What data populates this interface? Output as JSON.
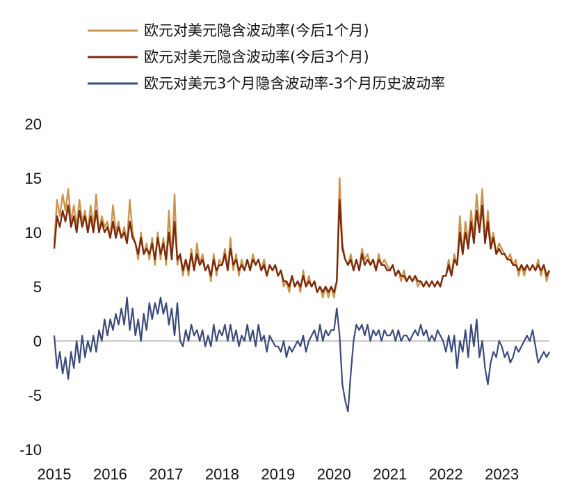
{
  "chart_data": {
    "type": "line",
    "title": "",
    "xlabel": "",
    "ylabel": "",
    "ylim": [
      -10,
      20
    ],
    "yticks": [
      -10,
      -5,
      0,
      5,
      10,
      15,
      20
    ],
    "xlim": [
      2015.0,
      2023.85
    ],
    "xtick_labels": [
      "2015",
      "2016",
      "2017",
      "2018",
      "2019",
      "2020",
      "2021",
      "2022",
      "2023"
    ],
    "legend_position": "top-left",
    "grid": false,
    "series": [
      {
        "name": "欧元对美元隐含波动率(今后1个月)",
        "color": "#c9954e",
        "x": [
          2015.0,
          2015.05,
          2015.1,
          2015.15,
          2015.2,
          2015.25,
          2015.3,
          2015.35,
          2015.4,
          2015.45,
          2015.5,
          2015.55,
          2015.6,
          2015.65,
          2015.7,
          2015.75,
          2015.8,
          2015.85,
          2015.9,
          2015.95,
          2016.0,
          2016.05,
          2016.1,
          2016.15,
          2016.2,
          2016.25,
          2016.3,
          2016.35,
          2016.4,
          2016.45,
          2016.5,
          2016.55,
          2016.6,
          2016.65,
          2016.7,
          2016.75,
          2016.8,
          2016.85,
          2016.9,
          2016.95,
          2017.0,
          2017.05,
          2017.1,
          2017.15,
          2017.2,
          2017.25,
          2017.3,
          2017.35,
          2017.4,
          2017.45,
          2017.5,
          2017.55,
          2017.6,
          2017.65,
          2017.7,
          2017.75,
          2017.8,
          2017.85,
          2017.9,
          2017.95,
          2018.0,
          2018.05,
          2018.1,
          2018.15,
          2018.2,
          2018.25,
          2018.3,
          2018.35,
          2018.4,
          2018.45,
          2018.5,
          2018.55,
          2018.6,
          2018.65,
          2018.7,
          2018.75,
          2018.8,
          2018.85,
          2018.9,
          2018.95,
          2019.0,
          2019.05,
          2019.1,
          2019.15,
          2019.2,
          2019.25,
          2019.3,
          2019.35,
          2019.4,
          2019.45,
          2019.5,
          2019.55,
          2019.6,
          2019.65,
          2019.7,
          2019.75,
          2019.8,
          2019.85,
          2019.9,
          2019.95,
          2020.0,
          2020.05,
          2020.1,
          2020.15,
          2020.2,
          2020.25,
          2020.3,
          2020.35,
          2020.4,
          2020.45,
          2020.5,
          2020.55,
          2020.6,
          2020.65,
          2020.7,
          2020.75,
          2020.8,
          2020.85,
          2020.9,
          2020.95,
          2021.0,
          2021.05,
          2021.1,
          2021.15,
          2021.2,
          2021.25,
          2021.3,
          2021.35,
          2021.4,
          2021.45,
          2021.5,
          2021.55,
          2021.6,
          2021.65,
          2021.7,
          2021.75,
          2021.8,
          2021.85,
          2021.9,
          2021.95,
          2022.0,
          2022.05,
          2022.1,
          2022.15,
          2022.2,
          2022.25,
          2022.3,
          2022.35,
          2022.4,
          2022.45,
          2022.5,
          2022.55,
          2022.6,
          2022.65,
          2022.7,
          2022.75,
          2022.8,
          2022.85,
          2022.9,
          2022.95,
          2023.0,
          2023.05,
          2023.1,
          2023.15,
          2023.2,
          2023.25,
          2023.3,
          2023.35,
          2023.4,
          2023.45,
          2023.5,
          2023.55,
          2023.6,
          2023.65,
          2023.7,
          2023.75,
          2023.8,
          2023.85
        ],
        "values": [
          9.0,
          13.0,
          11.5,
          13.5,
          12.0,
          14.0,
          11.0,
          12.5,
          10.5,
          13.0,
          11.0,
          12.0,
          10.0,
          12.5,
          10.5,
          13.5,
          10.0,
          11.5,
          10.5,
          11.0,
          9.5,
          12.5,
          10.0,
          11.0,
          9.5,
          10.5,
          9.0,
          13.0,
          10.0,
          9.0,
          7.5,
          10.0,
          8.0,
          9.0,
          7.5,
          9.5,
          7.0,
          10.0,
          7.5,
          9.5,
          7.0,
          12.0,
          7.5,
          13.5,
          7.0,
          8.0,
          6.0,
          7.5,
          6.0,
          8.5,
          6.5,
          9.0,
          7.0,
          8.0,
          6.5,
          7.0,
          5.5,
          8.0,
          6.0,
          7.5,
          7.0,
          8.5,
          6.5,
          9.5,
          6.5,
          8.0,
          6.0,
          7.5,
          6.5,
          7.5,
          6.5,
          8.0,
          7.0,
          7.5,
          6.5,
          7.5,
          6.0,
          7.0,
          6.5,
          7.0,
          6.0,
          6.5,
          5.0,
          5.5,
          4.5,
          6.0,
          5.0,
          5.5,
          4.5,
          6.5,
          5.0,
          6.0,
          5.0,
          5.5,
          4.5,
          5.0,
          4.0,
          5.0,
          4.0,
          5.0,
          4.0,
          5.5,
          15.0,
          9.0,
          7.5,
          7.0,
          8.0,
          6.5,
          7.5,
          6.5,
          8.5,
          7.5,
          8.0,
          7.0,
          7.5,
          6.5,
          8.0,
          7.0,
          7.5,
          7.0,
          6.5,
          7.0,
          6.0,
          6.5,
          5.5,
          6.5,
          5.5,
          6.0,
          5.5,
          6.0,
          5.0,
          5.5,
          5.0,
          5.5,
          5.0,
          5.5,
          5.0,
          5.5,
          5.0,
          6.0,
          6.0,
          7.5,
          6.0,
          8.0,
          7.0,
          11.5,
          8.0,
          11.0,
          9.0,
          12.0,
          9.5,
          13.5,
          10.5,
          14.0,
          9.0,
          12.0,
          9.0,
          10.0,
          8.0,
          9.0,
          8.5,
          8.0,
          7.5,
          8.0,
          7.0,
          7.5,
          6.0,
          7.0,
          6.0,
          7.0,
          6.5,
          7.0,
          6.5,
          7.5,
          6.0,
          7.0,
          5.5,
          6.5
        ]
      },
      {
        "name": "欧元对美元隐含波动率(今后3个月)",
        "color": "#7a2a0c",
        "x": [
          2015.0,
          2015.05,
          2015.1,
          2015.15,
          2015.2,
          2015.25,
          2015.3,
          2015.35,
          2015.4,
          2015.45,
          2015.5,
          2015.55,
          2015.6,
          2015.65,
          2015.7,
          2015.75,
          2015.8,
          2015.85,
          2015.9,
          2015.95,
          2016.0,
          2016.05,
          2016.1,
          2016.15,
          2016.2,
          2016.25,
          2016.3,
          2016.35,
          2016.4,
          2016.45,
          2016.5,
          2016.55,
          2016.6,
          2016.65,
          2016.7,
          2016.75,
          2016.8,
          2016.85,
          2016.9,
          2016.95,
          2017.0,
          2017.05,
          2017.1,
          2017.15,
          2017.2,
          2017.25,
          2017.3,
          2017.35,
          2017.4,
          2017.45,
          2017.5,
          2017.55,
          2017.6,
          2017.65,
          2017.7,
          2017.75,
          2017.8,
          2017.85,
          2017.9,
          2017.95,
          2018.0,
          2018.05,
          2018.1,
          2018.15,
          2018.2,
          2018.25,
          2018.3,
          2018.35,
          2018.4,
          2018.45,
          2018.5,
          2018.55,
          2018.6,
          2018.65,
          2018.7,
          2018.75,
          2018.8,
          2018.85,
          2018.9,
          2018.95,
          2019.0,
          2019.05,
          2019.1,
          2019.15,
          2019.2,
          2019.25,
          2019.3,
          2019.35,
          2019.4,
          2019.45,
          2019.5,
          2019.55,
          2019.6,
          2019.65,
          2019.7,
          2019.75,
          2019.8,
          2019.85,
          2019.9,
          2019.95,
          2020.0,
          2020.05,
          2020.1,
          2020.15,
          2020.2,
          2020.25,
          2020.3,
          2020.35,
          2020.4,
          2020.45,
          2020.5,
          2020.55,
          2020.6,
          2020.65,
          2020.7,
          2020.75,
          2020.8,
          2020.85,
          2020.9,
          2020.95,
          2021.0,
          2021.05,
          2021.1,
          2021.15,
          2021.2,
          2021.25,
          2021.3,
          2021.35,
          2021.4,
          2021.45,
          2021.5,
          2021.55,
          2021.6,
          2021.65,
          2021.7,
          2021.75,
          2021.8,
          2021.85,
          2021.9,
          2021.95,
          2022.0,
          2022.05,
          2022.1,
          2022.15,
          2022.2,
          2022.25,
          2022.3,
          2022.35,
          2022.4,
          2022.45,
          2022.5,
          2022.55,
          2022.6,
          2022.65,
          2022.7,
          2022.75,
          2022.8,
          2022.85,
          2022.9,
          2022.95,
          2023.0,
          2023.05,
          2023.1,
          2023.15,
          2023.2,
          2023.25,
          2023.3,
          2023.35,
          2023.4,
          2023.45,
          2023.5,
          2023.55,
          2023.6,
          2023.65,
          2023.7,
          2023.75,
          2023.8,
          2023.85
        ],
        "values": [
          8.5,
          11.5,
          10.5,
          12.0,
          11.0,
          12.5,
          10.5,
          11.5,
          10.0,
          12.0,
          10.5,
          11.5,
          10.0,
          11.5,
          10.0,
          12.0,
          10.0,
          11.0,
          10.0,
          10.5,
          9.5,
          11.0,
          9.5,
          10.5,
          9.5,
          10.0,
          9.0,
          11.0,
          9.5,
          9.0,
          8.0,
          9.5,
          8.0,
          8.5,
          8.0,
          9.0,
          7.5,
          9.5,
          8.0,
          9.0,
          7.5,
          10.0,
          7.5,
          11.0,
          7.5,
          8.0,
          6.5,
          7.5,
          6.5,
          8.0,
          6.5,
          8.0,
          7.0,
          7.5,
          6.5,
          7.0,
          6.0,
          7.5,
          6.5,
          7.0,
          7.0,
          8.0,
          6.5,
          8.5,
          7.0,
          7.5,
          6.5,
          7.0,
          6.5,
          7.5,
          6.5,
          7.5,
          7.0,
          7.5,
          6.5,
          7.0,
          6.0,
          7.0,
          6.5,
          7.0,
          6.0,
          6.5,
          5.5,
          5.5,
          5.0,
          6.0,
          5.0,
          5.5,
          5.0,
          6.0,
          5.0,
          5.5,
          5.0,
          5.5,
          4.5,
          5.0,
          4.5,
          5.0,
          4.5,
          5.0,
          4.5,
          5.5,
          13.0,
          8.5,
          7.5,
          7.0,
          7.5,
          6.5,
          7.5,
          6.5,
          8.0,
          7.0,
          7.5,
          7.0,
          7.5,
          6.5,
          7.5,
          7.0,
          7.0,
          6.5,
          6.5,
          7.0,
          6.0,
          6.5,
          6.0,
          6.0,
          5.5,
          6.0,
          5.5,
          6.0,
          5.5,
          5.5,
          5.0,
          5.5,
          5.0,
          5.5,
          5.0,
          5.5,
          5.0,
          6.0,
          6.0,
          7.0,
          6.0,
          7.5,
          7.0,
          10.0,
          8.0,
          10.0,
          8.5,
          11.0,
          9.0,
          12.0,
          10.0,
          12.5,
          9.0,
          11.0,
          8.5,
          9.5,
          8.0,
          8.5,
          8.0,
          8.0,
          7.5,
          7.5,
          7.0,
          7.0,
          6.5,
          7.0,
          6.5,
          7.0,
          6.5,
          7.0,
          6.5,
          7.0,
          6.5,
          7.0,
          6.0,
          6.5
        ]
      },
      {
        "name": "欧元对美元3个月隐含波动率-3个月历史波动率",
        "color": "#3b4a78",
        "x": [
          2015.0,
          2015.05,
          2015.1,
          2015.15,
          2015.2,
          2015.25,
          2015.3,
          2015.35,
          2015.4,
          2015.45,
          2015.5,
          2015.55,
          2015.6,
          2015.65,
          2015.7,
          2015.75,
          2015.8,
          2015.85,
          2015.9,
          2015.95,
          2016.0,
          2016.05,
          2016.1,
          2016.15,
          2016.2,
          2016.25,
          2016.3,
          2016.35,
          2016.4,
          2016.45,
          2016.5,
          2016.55,
          2016.6,
          2016.65,
          2016.7,
          2016.75,
          2016.8,
          2016.85,
          2016.9,
          2016.95,
          2017.0,
          2017.05,
          2017.1,
          2017.15,
          2017.2,
          2017.25,
          2017.3,
          2017.35,
          2017.4,
          2017.45,
          2017.5,
          2017.55,
          2017.6,
          2017.65,
          2017.7,
          2017.75,
          2017.8,
          2017.85,
          2017.9,
          2017.95,
          2018.0,
          2018.05,
          2018.1,
          2018.15,
          2018.2,
          2018.25,
          2018.3,
          2018.35,
          2018.4,
          2018.45,
          2018.5,
          2018.55,
          2018.6,
          2018.65,
          2018.7,
          2018.75,
          2018.8,
          2018.85,
          2018.9,
          2018.95,
          2019.0,
          2019.05,
          2019.1,
          2019.15,
          2019.2,
          2019.25,
          2019.3,
          2019.35,
          2019.4,
          2019.45,
          2019.5,
          2019.55,
          2019.6,
          2019.65,
          2019.7,
          2019.75,
          2019.8,
          2019.85,
          2019.9,
          2019.95,
          2020.0,
          2020.05,
          2020.1,
          2020.15,
          2020.2,
          2020.25,
          2020.3,
          2020.35,
          2020.4,
          2020.45,
          2020.5,
          2020.55,
          2020.6,
          2020.65,
          2020.7,
          2020.75,
          2020.8,
          2020.85,
          2020.9,
          2020.95,
          2021.0,
          2021.05,
          2021.1,
          2021.15,
          2021.2,
          2021.25,
          2021.3,
          2021.35,
          2021.4,
          2021.45,
          2021.5,
          2021.55,
          2021.6,
          2021.65,
          2021.7,
          2021.75,
          2021.8,
          2021.85,
          2021.9,
          2021.95,
          2022.0,
          2022.05,
          2022.1,
          2022.15,
          2022.2,
          2022.25,
          2022.3,
          2022.35,
          2022.4,
          2022.45,
          2022.5,
          2022.55,
          2022.6,
          2022.65,
          2022.7,
          2022.75,
          2022.8,
          2022.85,
          2022.9,
          2022.95,
          2023.0,
          2023.05,
          2023.1,
          2023.15,
          2023.2,
          2023.25,
          2023.3,
          2023.35,
          2023.4,
          2023.45,
          2023.5,
          2023.55,
          2023.6,
          2023.65,
          2023.7,
          2023.75,
          2023.8,
          2023.85
        ],
        "values": [
          0.5,
          -2.5,
          -1.0,
          -3.0,
          -1.5,
          -3.5,
          -1.0,
          -2.5,
          0.0,
          -2.0,
          0.5,
          -1.5,
          0.0,
          -1.0,
          0.5,
          -1.0,
          1.0,
          0.0,
          2.0,
          0.5,
          2.0,
          1.0,
          2.5,
          1.5,
          3.0,
          1.5,
          4.0,
          1.0,
          3.0,
          0.5,
          2.0,
          0.0,
          2.5,
          1.0,
          3.5,
          2.0,
          3.5,
          2.5,
          4.0,
          2.5,
          3.5,
          1.5,
          3.0,
          0.5,
          3.5,
          0.0,
          -0.5,
          1.0,
          0.0,
          1.5,
          0.5,
          1.0,
          0.0,
          1.0,
          -0.5,
          0.5,
          -0.5,
          1.5,
          0.0,
          1.0,
          0.5,
          1.5,
          0.0,
          1.5,
          0.0,
          1.0,
          -0.5,
          0.5,
          0.0,
          1.5,
          0.0,
          1.0,
          -0.5,
          1.5,
          0.0,
          0.5,
          -1.0,
          0.5,
          0.0,
          -0.5,
          -0.5,
          -1.0,
          0.0,
          -1.5,
          -0.5,
          -1.0,
          -0.5,
          0.0,
          -0.5,
          0.5,
          -1.0,
          0.0,
          0.5,
          1.0,
          0.0,
          1.5,
          0.0,
          1.0,
          0.5,
          1.0,
          1.0,
          3.0,
          0.5,
          -4.0,
          -5.5,
          -6.5,
          -3.0,
          0.0,
          1.5,
          1.0,
          1.5,
          0.5,
          1.5,
          0.0,
          1.0,
          0.5,
          1.0,
          0.0,
          1.0,
          0.5,
          0.5,
          1.0,
          0.0,
          1.0,
          0.0,
          0.5,
          0.5,
          0.0,
          0.5,
          1.0,
          0.5,
          1.5,
          0.5,
          1.0,
          0.0,
          0.5,
          0.0,
          1.0,
          0.5,
          0.0,
          -1.0,
          0.5,
          -1.0,
          0.5,
          -2.5,
          0.0,
          -1.0,
          1.0,
          -1.5,
          1.5,
          -0.5,
          2.0,
          -1.5,
          0.0,
          -2.5,
          -4.0,
          -2.0,
          -1.0,
          -1.5,
          0.0,
          -0.5,
          -1.5,
          -1.0,
          -2.0,
          -1.5,
          -0.5,
          -1.0,
          -0.5,
          0.0,
          0.5,
          0.0,
          1.0,
          -0.5,
          -2.0,
          -1.5,
          -1.0,
          -1.5,
          -1.0
        ]
      }
    ]
  }
}
